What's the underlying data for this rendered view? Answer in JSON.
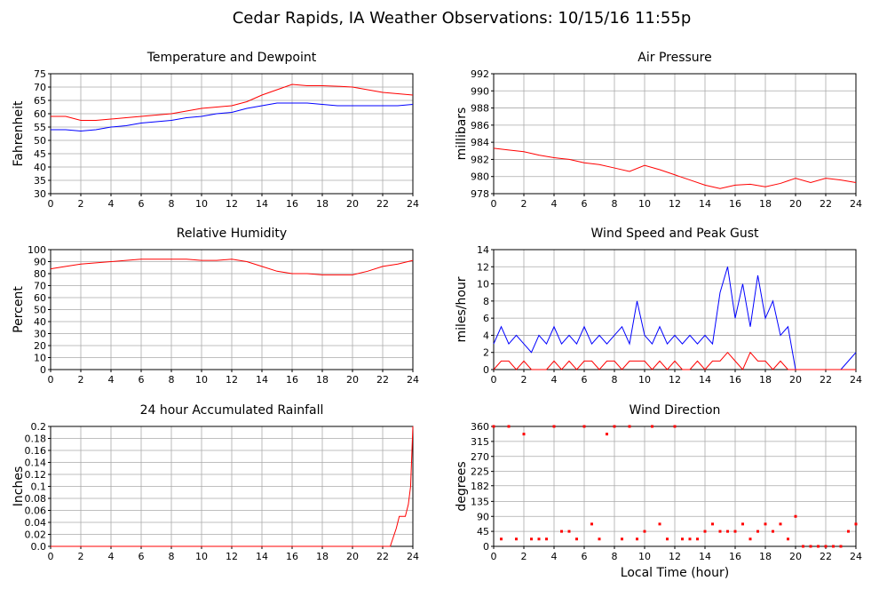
{
  "title": "Cedar Rapids, IA Weather Observations: 10/15/16 11:55p",
  "chart_data": [
    {
      "type": "line",
      "title": "Temperature and Dewpoint",
      "ylabel": "Fahrenheit",
      "grid": true,
      "xlim": [
        0,
        24
      ],
      "xticks": [
        0,
        2,
        4,
        6,
        8,
        10,
        12,
        14,
        16,
        18,
        20,
        22,
        24
      ],
      "ylim": [
        30,
        75
      ],
      "yticks": [
        30,
        35,
        40,
        45,
        50,
        55,
        60,
        65,
        70,
        75
      ],
      "x": [
        0,
        1,
        2,
        3,
        4,
        5,
        6,
        7,
        8,
        9,
        10,
        11,
        12,
        13,
        14,
        15,
        16,
        17,
        18,
        19,
        20,
        21,
        22,
        23,
        24
      ],
      "series": [
        {
          "color": "#ff0000",
          "values": [
            59,
            59,
            57.5,
            57.5,
            58,
            58.5,
            59,
            59.5,
            60,
            61,
            62,
            62.5,
            63,
            64.5,
            67,
            69,
            71,
            70.5,
            70.5,
            70.3,
            70,
            69,
            68,
            67.5,
            67
          ]
        },
        {
          "color": "#0000ff",
          "values": [
            54,
            54,
            53.5,
            54,
            55,
            55.5,
            56.5,
            57,
            57.5,
            58.5,
            59,
            60,
            60.5,
            62,
            63,
            64,
            64,
            64,
            63.5,
            63,
            63,
            63,
            63,
            63,
            63.5
          ]
        }
      ]
    },
    {
      "type": "line",
      "title": "Air Pressure",
      "ylabel": "millibars",
      "grid": true,
      "xlim": [
        0,
        24
      ],
      "xticks": [
        0,
        2,
        4,
        6,
        8,
        10,
        12,
        14,
        16,
        18,
        20,
        22,
        24
      ],
      "ylim": [
        978,
        992
      ],
      "yticks": [
        978,
        980,
        982,
        984,
        986,
        988,
        990,
        992
      ],
      "x": [
        0,
        1,
        2,
        3,
        4,
        5,
        6,
        7,
        8,
        9,
        10,
        11,
        12,
        13,
        14,
        15,
        16,
        17,
        18,
        19,
        20,
        21,
        22,
        23,
        24
      ],
      "series": [
        {
          "color": "#ff0000",
          "values": [
            983.3,
            983.1,
            982.9,
            982.5,
            982.2,
            982,
            981.6,
            981.4,
            981,
            980.6,
            981.3,
            980.8,
            980.2,
            979.6,
            979,
            978.6,
            979,
            979.1,
            978.8,
            979.2,
            979.8,
            979.3,
            979.8,
            979.6,
            979.3
          ]
        }
      ]
    },
    {
      "type": "line",
      "title": "Relative Humidity",
      "ylabel": "Percent",
      "grid": true,
      "xlim": [
        0,
        24
      ],
      "xticks": [
        0,
        2,
        4,
        6,
        8,
        10,
        12,
        14,
        16,
        18,
        20,
        22,
        24
      ],
      "ylim": [
        0,
        100
      ],
      "yticks": [
        0,
        10,
        20,
        30,
        40,
        50,
        60,
        70,
        80,
        90,
        100
      ],
      "x": [
        0,
        1,
        2,
        3,
        4,
        5,
        6,
        7,
        8,
        9,
        10,
        11,
        12,
        13,
        14,
        15,
        16,
        17,
        18,
        19,
        20,
        21,
        22,
        23,
        24
      ],
      "series": [
        {
          "color": "#ff0000",
          "values": [
            84,
            86,
            88,
            89,
            90,
            91,
            92,
            92,
            92,
            92,
            91,
            91,
            92,
            90,
            86,
            82,
            80,
            80,
            79,
            79,
            79,
            82,
            86,
            88,
            91
          ]
        }
      ]
    },
    {
      "type": "line",
      "title": "Wind Speed and Peak Gust",
      "ylabel": "miles/hour",
      "grid": true,
      "xlim": [
        0,
        24
      ],
      "xticks": [
        0,
        2,
        4,
        6,
        8,
        10,
        12,
        14,
        16,
        18,
        20,
        22,
        24
      ],
      "ylim": [
        0,
        14
      ],
      "yticks": [
        0,
        2,
        4,
        6,
        8,
        10,
        12,
        14
      ],
      "x": [
        0,
        0.5,
        1,
        1.5,
        2,
        2.5,
        3,
        3.5,
        4,
        4.5,
        5,
        5.5,
        6,
        6.5,
        7,
        7.5,
        8,
        8.5,
        9,
        9.5,
        10,
        10.5,
        11,
        11.5,
        12,
        12.5,
        13,
        13.5,
        14,
        14.5,
        15,
        15.5,
        16,
        16.5,
        17,
        17.5,
        18,
        18.5,
        19,
        19.5,
        20,
        20.5,
        21,
        21.5,
        22,
        22.5,
        23,
        23.5,
        24
      ],
      "series": [
        {
          "color": "#0000ff",
          "values": [
            3,
            5,
            3,
            4,
            3,
            2,
            4,
            3,
            5,
            3,
            4,
            3,
            5,
            3,
            4,
            3,
            4,
            5,
            3,
            8,
            4,
            3,
            5,
            3,
            4,
            3,
            4,
            3,
            4,
            3,
            9,
            12,
            6,
            10,
            5,
            11,
            6,
            8,
            4,
            5,
            0,
            0,
            0,
            0,
            0,
            0,
            0,
            1,
            2
          ]
        },
        {
          "color": "#ff0000",
          "values": [
            0,
            1,
            1,
            0,
            1,
            0,
            0,
            0,
            1,
            0,
            1,
            0,
            1,
            1,
            0,
            1,
            1,
            0,
            1,
            1,
            1,
            0,
            1,
            0,
            1,
            0,
            0,
            1,
            0,
            1,
            1,
            2,
            1,
            0,
            2,
            1,
            1,
            0,
            1,
            0,
            0,
            0,
            0,
            0,
            0,
            0,
            0,
            0,
            0
          ]
        }
      ]
    },
    {
      "type": "line",
      "title": "24 hour Accumulated Rainfall",
      "ylabel": "Inches",
      "grid": true,
      "xlim": [
        0,
        24
      ],
      "xticks": [
        0,
        2,
        4,
        6,
        8,
        10,
        12,
        14,
        16,
        18,
        20,
        22,
        24
      ],
      "ylim": [
        0,
        0.2
      ],
      "yticks": [
        {
          "value": 0,
          "label": "0.0"
        },
        0.02,
        0.04,
        0.06,
        0.08,
        0.1,
        0.12,
        0.14,
        0.16,
        0.18,
        0.2
      ],
      "x": [
        0,
        22.5,
        22.9,
        23.1,
        23.5,
        23.7,
        23.85,
        24
      ],
      "series": [
        {
          "color": "#ff0000",
          "values": [
            0,
            0,
            0.03,
            0.05,
            0.05,
            0.07,
            0.1,
            0.2
          ]
        }
      ]
    },
    {
      "type": "scatter",
      "title": "Wind Direction",
      "ylabel": "degrees",
      "xlabel": "Local Time (hour)",
      "grid": true,
      "xlim": [
        0,
        24
      ],
      "xticks": [
        0,
        2,
        4,
        6,
        8,
        10,
        12,
        14,
        16,
        18,
        20,
        22,
        24
      ],
      "ylim": [
        0,
        360
      ],
      "yticks": [
        0,
        45,
        90,
        135,
        182,
        225,
        270,
        315,
        360
      ],
      "x": [
        0,
        0.5,
        1,
        1.5,
        2,
        2.5,
        3,
        3.5,
        4,
        4.5,
        5,
        5.5,
        6,
        6.5,
        7,
        7.5,
        8,
        8.5,
        9,
        9.5,
        10,
        10.5,
        11,
        11.5,
        12,
        12.5,
        13,
        13.5,
        14,
        14.5,
        15,
        15.5,
        16,
        16.5,
        17,
        17.5,
        18,
        18.5,
        19,
        19.5,
        20,
        20.5,
        21,
        21.5,
        22,
        22.5,
        23,
        23.5,
        24
      ],
      "series": [
        {
          "color": "#ff0000",
          "values": [
            360,
            22,
            360,
            22,
            337,
            22,
            22,
            22,
            360,
            45,
            45,
            22,
            360,
            67,
            22,
            337,
            360,
            22,
            360,
            22,
            45,
            360,
            67,
            22,
            360,
            22,
            22,
            22,
            45,
            67,
            45,
            45,
            45,
            67,
            22,
            45,
            67,
            45,
            67,
            22,
            90,
            0,
            0,
            0,
            0,
            0,
            0,
            45,
            67
          ]
        }
      ]
    }
  ]
}
